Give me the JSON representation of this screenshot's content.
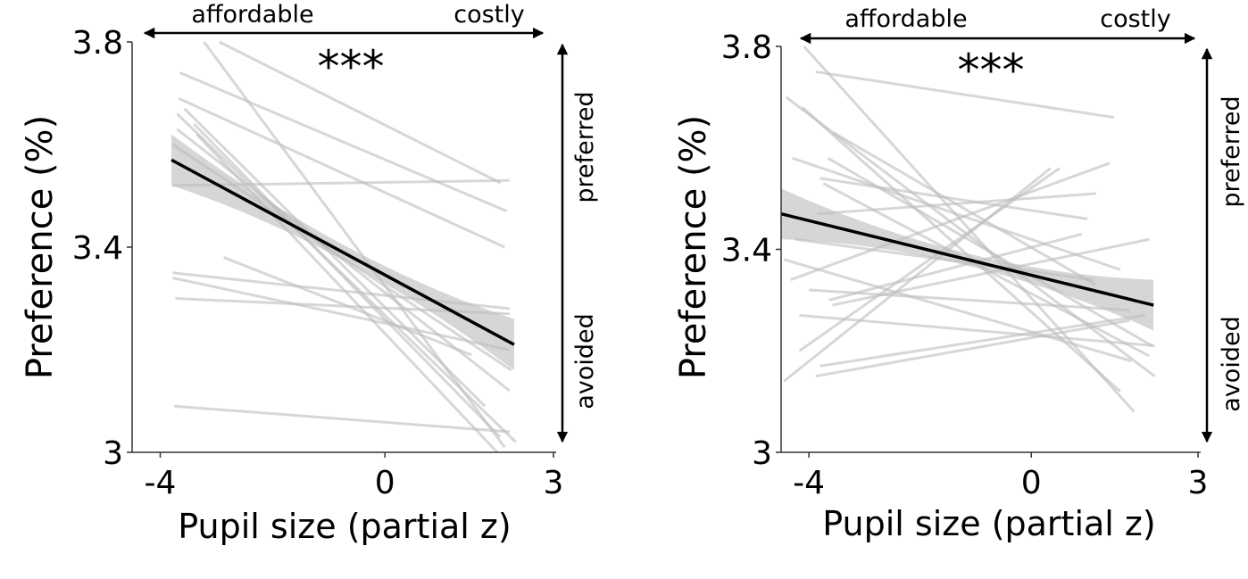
{
  "chart_data": [
    {
      "type": "line",
      "title": "",
      "xlabel": "Pupil size (partial z)",
      "ylabel": "Preference (%)",
      "xlim": [
        -4.5,
        3
      ],
      "ylim": [
        3.0,
        3.8
      ],
      "xticks": [
        {
          "value": -4,
          "label": "-4"
        },
        {
          "value": 0,
          "label": "0"
        },
        {
          "value": 3,
          "label": "3"
        }
      ],
      "yticks": [
        {
          "value": 3.0,
          "label": "3"
        },
        {
          "value": 3.4,
          "label": "3.4"
        },
        {
          "value": 3.8,
          "label": "3.8"
        }
      ],
      "significance": "***",
      "x_arrow_labels": {
        "left": "affordable",
        "right": "costly"
      },
      "y_arrow_labels": {
        "top": "preferred",
        "bottom": "avoided"
      },
      "grid": false,
      "fit": {
        "x": [
          -3.8,
          2.3
        ],
        "y": [
          3.57,
          3.21
        ],
        "ci_end": 0.05,
        "ci_mid": 0.015,
        "color": "#000000",
        "ci_color": "#cfcfcf"
      },
      "subject_color": "#bdbdbd",
      "subjects": [
        {
          "x": [
            -3.22,
            2.13
          ],
          "y": [
            3.8,
            3.01
          ]
        },
        {
          "x": [
            -2.95,
            2.06
          ],
          "y": [
            3.8,
            3.525
          ]
        },
        {
          "x": [
            -3.65,
            2.17
          ],
          "y": [
            3.74,
            3.47
          ]
        },
        {
          "x": [
            -3.67,
            2.13
          ],
          "y": [
            3.69,
            3.4
          ]
        },
        {
          "x": [
            -3.7,
            2.22
          ],
          "y": [
            3.63,
            3.12
          ]
        },
        {
          "x": [
            -3.78,
            2.22
          ],
          "y": [
            3.52,
            3.53
          ]
        },
        {
          "x": [
            -3.7,
            2.33
          ],
          "y": [
            3.66,
            3.02
          ]
        },
        {
          "x": [
            -3.57,
            1.78
          ],
          "y": [
            3.67,
            3.09
          ]
        },
        {
          "x": [
            -3.78,
            2.25
          ],
          "y": [
            3.6,
            3.16
          ]
        },
        {
          "x": [
            -2.87,
            1.54
          ],
          "y": [
            3.38,
            3.19
          ]
        },
        {
          "x": [
            -3.78,
            2.22
          ],
          "y": [
            3.35,
            3.28
          ]
        },
        {
          "x": [
            -3.78,
            2.2
          ],
          "y": [
            3.34,
            3.2
          ]
        },
        {
          "x": [
            -3.73,
            2.22
          ],
          "y": [
            3.3,
            3.27
          ]
        },
        {
          "x": [
            -3.75,
            2.22
          ],
          "y": [
            3.09,
            3.04
          ]
        },
        {
          "x": [
            -3.35,
            2.0
          ],
          "y": [
            3.62,
            3.0
          ]
        },
        {
          "x": [
            -3.4,
            2.05
          ],
          "y": [
            3.64,
            3.03
          ]
        }
      ]
    },
    {
      "type": "line",
      "title": "",
      "xlabel": "Pupil size (partial z)",
      "ylabel": "Preference (%)",
      "xlim": [
        -4.5,
        3
      ],
      "ylim": [
        3.0,
        3.8
      ],
      "xticks": [
        {
          "value": -4,
          "label": "-4"
        },
        {
          "value": 0,
          "label": "0"
        },
        {
          "value": 3,
          "label": "3"
        }
      ],
      "yticks": [
        {
          "value": 3.0,
          "label": "3"
        },
        {
          "value": 3.4,
          "label": "3.4"
        },
        {
          "value": 3.8,
          "label": "3.8"
        }
      ],
      "significance": "***",
      "x_arrow_labels": {
        "left": "affordable",
        "right": "costly"
      },
      "y_arrow_labels": {
        "top": "preferred",
        "bottom": "avoided"
      },
      "grid": false,
      "fit": {
        "x": [
          -4.5,
          2.2
        ],
        "y": [
          3.47,
          3.29
        ],
        "ci_end": 0.05,
        "ci_mid": 0.012,
        "color": "#000000",
        "ci_color": "#cfcfcf"
      },
      "subject_color": "#bdbdbd",
      "subjects": [
        {
          "x": [
            -4.09,
            1.85
          ],
          "y": [
            3.8,
            3.08
          ]
        },
        {
          "x": [
            -3.88,
            1.49
          ],
          "y": [
            3.75,
            3.66
          ]
        },
        {
          "x": [
            -4.41,
            2.22
          ],
          "y": [
            3.7,
            3.15
          ]
        },
        {
          "x": [
            -4.12,
            1.6
          ],
          "y": [
            3.68,
            3.12
          ]
        },
        {
          "x": [
            -3.56,
            1.16
          ],
          "y": [
            3.63,
            3.33
          ]
        },
        {
          "x": [
            -4.3,
            1.6
          ],
          "y": [
            3.58,
            3.36
          ]
        },
        {
          "x": [
            -3.66,
            2.17
          ],
          "y": [
            3.58,
            3.21
          ]
        },
        {
          "x": [
            -3.8,
            1.01
          ],
          "y": [
            3.54,
            3.46
          ]
        },
        {
          "x": [
            -3.74,
            2.12
          ],
          "y": [
            3.53,
            3.19
          ]
        },
        {
          "x": [
            -3.85,
            1.17
          ],
          "y": [
            3.47,
            3.51
          ]
        },
        {
          "x": [
            -4.33,
            1.41
          ],
          "y": [
            3.34,
            3.57
          ]
        },
        {
          "x": [
            -4.17,
            0.51
          ],
          "y": [
            3.2,
            3.56
          ]
        },
        {
          "x": [
            -4.45,
            0.35
          ],
          "y": [
            3.14,
            3.56
          ]
        },
        {
          "x": [
            -4.25,
            1.12
          ],
          "y": [
            3.42,
            3.34
          ]
        },
        {
          "x": [
            -4.45,
            1.8
          ],
          "y": [
            3.38,
            3.18
          ]
        },
        {
          "x": [
            -4.0,
            1.77
          ],
          "y": [
            3.32,
            3.28
          ]
        },
        {
          "x": [
            -3.64,
            0.91
          ],
          "y": [
            3.3,
            3.43
          ]
        },
        {
          "x": [
            -3.58,
            2.13
          ],
          "y": [
            3.29,
            3.42
          ]
        },
        {
          "x": [
            -4.17,
            2.22
          ],
          "y": [
            3.27,
            3.21
          ]
        },
        {
          "x": [
            -3.8,
            2.05
          ],
          "y": [
            3.17,
            3.27
          ]
        },
        {
          "x": [
            -3.88,
            1.77
          ],
          "y": [
            3.15,
            3.26
          ]
        }
      ]
    }
  ]
}
